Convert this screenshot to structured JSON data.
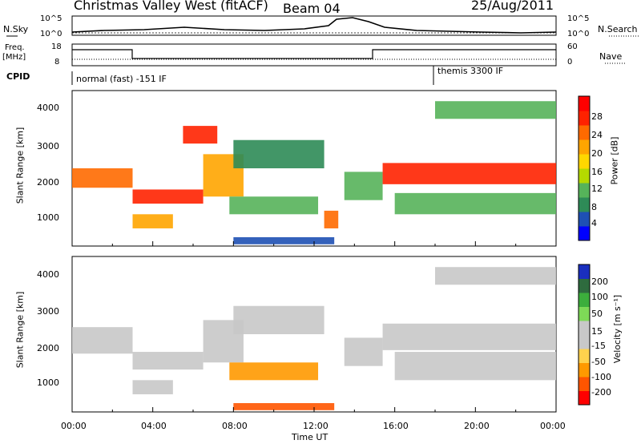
{
  "header": {
    "radar_title": "Christmas Valley West (fitACF)",
    "beam": "Beam 04",
    "date": "25/Aug/2011"
  },
  "panels": {
    "nsky": {
      "left_label": "N.Sky",
      "left_ticks": [
        "10^5",
        "10^0"
      ],
      "right_label": "N.Search",
      "right_ticks": [
        "10^5",
        "10^0"
      ]
    },
    "freq": {
      "left_label_1": "Freq.",
      "left_label_2": "[MHz]",
      "left_ticks": [
        "18",
        "8"
      ],
      "right_label": "Nave",
      "right_ticks": [
        "60",
        "0"
      ]
    },
    "cpid": {
      "label": "CPID",
      "segments": [
        "normal (fast) -151 IF",
        "themis 3300 IF"
      ]
    }
  },
  "colors": {
    "power_scale": [
      "#0000ff",
      "#1e50b4",
      "#2e8b57",
      "#56b35a",
      "#b5d900",
      "#ffd700",
      "#ffa500",
      "#ff6a00",
      "#ff2200",
      "#ff0000"
    ],
    "velocity_scale": [
      "#1a2fbf",
      "#2e6b3e",
      "#3cae3c",
      "#7ed957",
      "#c8c8c8",
      "#c8c8c8",
      "#ffd24d",
      "#ff9900",
      "#ff5500",
      "#ff0000"
    ]
  },
  "chart_data": [
    {
      "type": "heatmap",
      "panel": "power",
      "ylabel": "Slant Range [km]",
      "ylim": [
        200,
        4600
      ],
      "yticks": [
        "1000",
        "2000",
        "3000",
        "4000"
      ],
      "xlim_hours": [
        0,
        24
      ],
      "colorbar": {
        "label": "Power [dB]",
        "range": [
          0,
          32
        ],
        "ticks": [
          "4",
          "8",
          "12",
          "16",
          "20",
          "24",
          "28"
        ]
      },
      "echo_bands": [
        {
          "t0": 0.0,
          "t1": 3.0,
          "r0": 1850,
          "r1": 2400,
          "value": 24
        },
        {
          "t0": 3.0,
          "t1": 6.5,
          "r0": 1400,
          "r1": 1800,
          "value": 26
        },
        {
          "t0": 3.0,
          "t1": 5.0,
          "r0": 700,
          "r1": 1100,
          "value": 22
        },
        {
          "t0": 5.5,
          "t1": 7.2,
          "r0": 3100,
          "r1": 3600,
          "value": 26
        },
        {
          "t0": 6.5,
          "t1": 8.5,
          "r0": 1600,
          "r1": 2800,
          "value": 20
        },
        {
          "t0": 8.0,
          "t1": 12.5,
          "r0": 2400,
          "r1": 3200,
          "value": 8
        },
        {
          "t0": 7.8,
          "t1": 12.2,
          "r0": 1100,
          "r1": 1600,
          "value": 10
        },
        {
          "t0": 12.5,
          "t1": 13.2,
          "r0": 700,
          "r1": 1200,
          "value": 24
        },
        {
          "t0": 13.5,
          "t1": 15.4,
          "r0": 1500,
          "r1": 2300,
          "value": 10
        },
        {
          "t0": 15.4,
          "t1": 24.0,
          "r0": 1950,
          "r1": 2550,
          "value": 26
        },
        {
          "t0": 16.0,
          "t1": 24.0,
          "r0": 1100,
          "r1": 1700,
          "value": 12
        },
        {
          "t0": 18.0,
          "t1": 24.0,
          "r0": 3800,
          "r1": 4300,
          "value": 12
        },
        {
          "t0": 8.0,
          "t1": 13.0,
          "r0": 250,
          "r1": 450,
          "value": 4
        }
      ]
    },
    {
      "type": "heatmap",
      "panel": "velocity",
      "ylabel": "Slant Range [km]",
      "xlabel": "Time UT",
      "ylim": [
        200,
        4600
      ],
      "yticks": [
        "1000",
        "2000",
        "3000",
        "4000"
      ],
      "xticks": [
        "00:00",
        "04:00",
        "08:00",
        "12:00",
        "16:00",
        "20:00",
        "00:00"
      ],
      "colorbar": {
        "label": "Velocity [m s⁻¹]",
        "ticks": [
          "200",
          "100",
          "50",
          "15",
          "-15",
          "-50",
          "-100",
          "-200"
        ]
      },
      "echo_bands": [
        {
          "t0": 0.0,
          "t1": 3.0,
          "r0": 1850,
          "r1": 2600,
          "value": 0
        },
        {
          "t0": 3.0,
          "t1": 6.5,
          "r0": 1400,
          "r1": 1900,
          "value": 0
        },
        {
          "t0": 3.0,
          "t1": 5.0,
          "r0": 700,
          "r1": 1100,
          "value": 0
        },
        {
          "t0": 6.5,
          "t1": 8.5,
          "r0": 1600,
          "r1": 2800,
          "value": 0
        },
        {
          "t0": 8.0,
          "t1": 12.5,
          "r0": 2400,
          "r1": 3200,
          "value": 0
        },
        {
          "t0": 7.8,
          "t1": 12.2,
          "r0": 1100,
          "r1": 1600,
          "value": -30
        },
        {
          "t0": 13.5,
          "t1": 15.4,
          "r0": 1500,
          "r1": 2300,
          "value": 0
        },
        {
          "t0": 15.4,
          "t1": 24.0,
          "r0": 1950,
          "r1": 2700,
          "value": 0
        },
        {
          "t0": 16.0,
          "t1": 24.0,
          "r0": 1100,
          "r1": 1900,
          "value": 0
        },
        {
          "t0": 18.0,
          "t1": 24.0,
          "r0": 3800,
          "r1": 4300,
          "value": 0
        },
        {
          "t0": 8.0,
          "t1": 13.0,
          "r0": 250,
          "r1": 450,
          "value": -60
        }
      ]
    }
  ]
}
